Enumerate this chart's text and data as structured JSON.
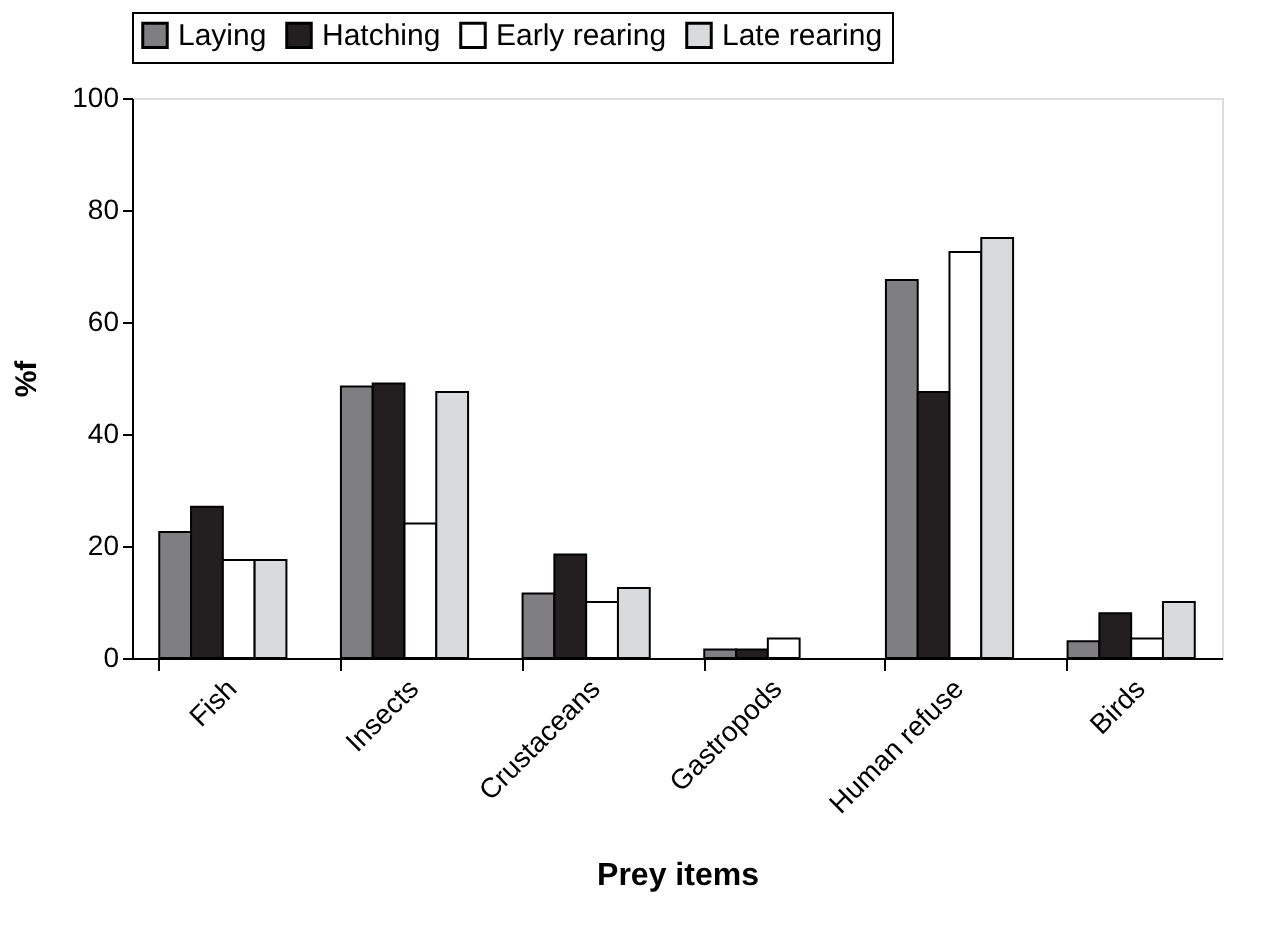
{
  "chart_data": {
    "type": "bar",
    "xlabel": "Prey items",
    "ylabel": "%f",
    "categories": [
      "Fish",
      "Insects",
      "Crustaceans",
      "Gastropods",
      "Human refuse",
      "Birds"
    ],
    "series": [
      {
        "name": "Laying",
        "color": "#7f7f81",
        "values": [
          22.5,
          48.5,
          11.5,
          1.5,
          67.5,
          3
        ]
      },
      {
        "name": "Hatching",
        "color": "#231f20",
        "values": [
          27,
          49,
          18.5,
          1.5,
          47.5,
          8
        ]
      },
      {
        "name": "Early rearing",
        "color": "#ffffff",
        "values": [
          17.5,
          24,
          10,
          3.5,
          72.5,
          3.5
        ]
      },
      {
        "name": "Late rearing",
        "color": "#d9dadb",
        "values": [
          17.5,
          47.5,
          12.5,
          null,
          75,
          10
        ]
      }
    ],
    "ylim": [
      0,
      100
    ],
    "yticks": [
      0,
      20,
      40,
      60,
      80,
      100
    ],
    "grid": false,
    "legend": "top"
  }
}
